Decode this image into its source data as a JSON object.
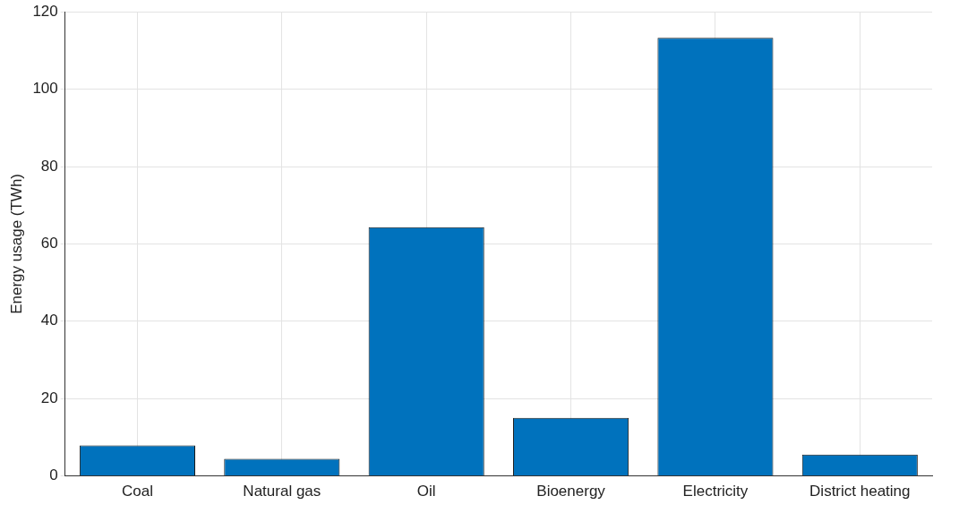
{
  "chart_data": {
    "type": "bar",
    "ylabel": "Energy usage (TWh)",
    "categories": [
      "Coal",
      "Natural gas",
      "Oil",
      "Bioenergy",
      "Electricity",
      "District heating"
    ],
    "values": [
      7.9,
      4.4,
      64.3,
      15.0,
      113.3,
      5.5
    ],
    "color": "#0072bd",
    "ylim": [
      0,
      120
    ],
    "yticks": [
      0,
      20,
      40,
      60,
      80,
      100,
      120
    ],
    "grid": true
  }
}
